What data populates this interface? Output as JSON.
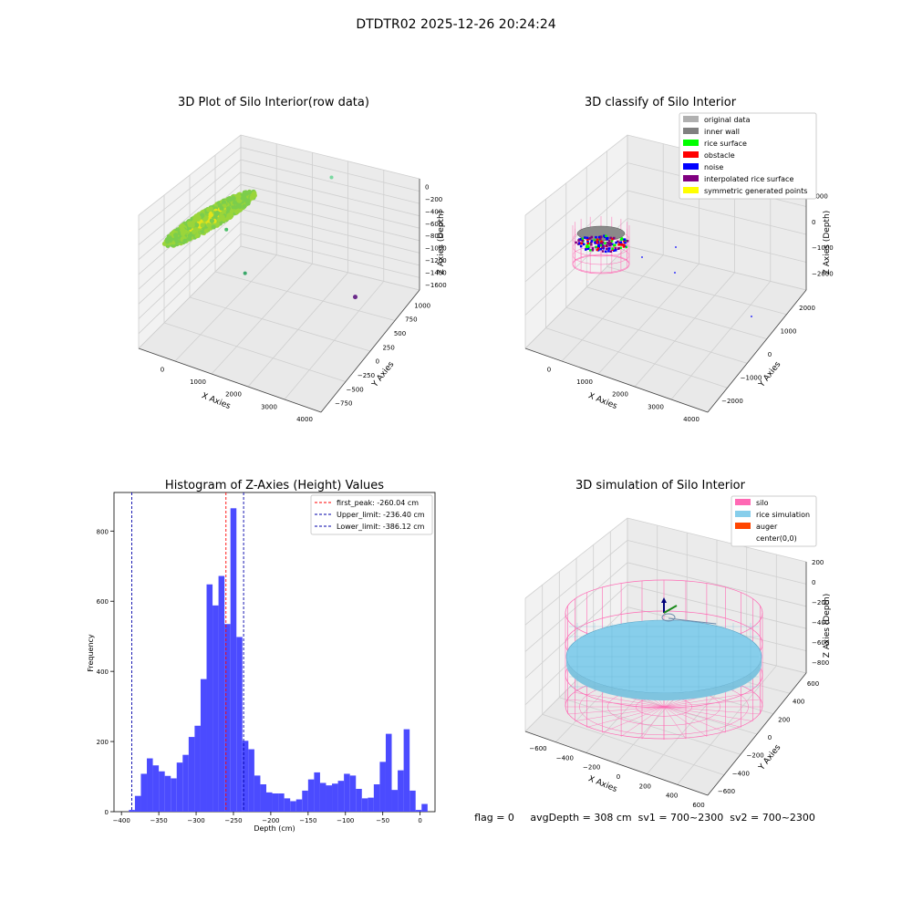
{
  "figure": {
    "suptitle": "DTDTR02 2025-12-26 20:24:24",
    "footer": "flag = 0     avgDepth = 308 cm  sv1 = 700~2300  sv2 = 700~2300"
  },
  "colors": {
    "pane": "#f2f2f2",
    "pane_side": "#e9e9e9",
    "grid": "#cfcfcf",
    "hist_bar": "#4b4bff",
    "first_peak": "#ff0000",
    "limits": "#0000aa",
    "silo": "#ff69b4",
    "rice": "#87ceeb",
    "auger": "#ff4500"
  },
  "chart_data": [
    {
      "type": "scatter",
      "title": "3D Plot of Silo Interior(row data)",
      "xlabel": "X Axies",
      "ylabel": "Y Axies",
      "zlabel": "Z Axies (Depth)",
      "x_ticks": [
        "0",
        "1000",
        "2000",
        "3000",
        "4000"
      ],
      "y_ticks": [
        "−750",
        "−500",
        "−250",
        "0",
        "250",
        "500",
        "750",
        "1000"
      ],
      "z_ticks": [
        "0",
        "−200",
        "−400",
        "−600",
        "−800",
        "−1000",
        "−1200",
        "−1400",
        "−1600"
      ],
      "outliers": [
        {
          "x": 3500,
          "y": 600,
          "z": -1600
        },
        {
          "x": 1600,
          "y": -200,
          "z": -900
        },
        {
          "x": 700,
          "y": 100,
          "z": -700
        },
        {
          "x": 2600,
          "y": 800,
          "z": -200
        }
      ]
    },
    {
      "type": "scatter",
      "title": "3D classify of Silo Interior",
      "xlabel": "X Axies",
      "ylabel": "Y Axies",
      "zlabel": "Z Axies (Depth)",
      "x_ticks": [
        "0",
        "1000",
        "2000",
        "3000",
        "4000"
      ],
      "y_ticks": [
        "−2000",
        "−1000",
        "0",
        "1000",
        "2000"
      ],
      "z_ticks": [
        "1000",
        "0",
        "−1000",
        "−2000"
      ],
      "legend": [
        {
          "label": "original data",
          "color": "#b0b0b0"
        },
        {
          "label": "inner wall",
          "color": "#808080"
        },
        {
          "label": "rice surface",
          "color": "#00ff00"
        },
        {
          "label": "obstacle",
          "color": "#ff0000"
        },
        {
          "label": "noise",
          "color": "#0000ff"
        },
        {
          "label": "interpolated rice surface",
          "color": "#800080"
        },
        {
          "label": "symmetric generated points",
          "color": "#ffff00"
        }
      ]
    },
    {
      "type": "bar",
      "title": "Histogram of Z-Axies (Height) Values",
      "xlabel": "Depth (cm)",
      "ylabel": "Frequency",
      "xlim": [
        -410,
        20
      ],
      "ylim": [
        0,
        910
      ],
      "x_ticks": [
        -400,
        -350,
        -300,
        -250,
        -200,
        -150,
        -100,
        -50,
        0
      ],
      "y_ticks": [
        0,
        200,
        400,
        600,
        800
      ],
      "bin_start": -390,
      "bin_width": 8,
      "values": [
        5,
        45,
        108,
        152,
        132,
        115,
        102,
        95,
        140,
        162,
        213,
        245,
        378,
        648,
        588,
        672,
        535,
        865,
        498,
        202,
        178,
        103,
        78,
        55,
        52,
        52,
        38,
        30,
        35,
        60,
        92,
        112,
        82,
        75,
        80,
        88,
        108,
        103,
        65,
        38,
        40,
        78,
        142,
        222,
        62,
        118,
        235,
        60,
        5,
        22
      ],
      "lines": [
        {
          "label": "first_peak: -260.04 cm",
          "x": -260.04,
          "color": "#ff0000"
        },
        {
          "label": "Upper_limit: -236.40 cm",
          "x": -236.4,
          "color": "#0000aa"
        },
        {
          "label": "Lower_limit: -386.12 cm",
          "x": -386.12,
          "color": "#0000aa"
        }
      ]
    },
    {
      "type": "scatter",
      "title": "3D simulation of Silo Interior",
      "xlabel": "X Axies",
      "ylabel": "Y Axies",
      "zlabel": "Z Axies (Depth)",
      "x_ticks": [
        "−600",
        "−400",
        "−200",
        "0",
        "200",
        "400",
        "600"
      ],
      "y_ticks": [
        "−600",
        "−400",
        "−200",
        "0",
        "200",
        "400",
        "600"
      ],
      "z_ticks": [
        "200",
        "0",
        "−200",
        "−400",
        "−600",
        "−800"
      ],
      "legend": [
        {
          "label": "silo",
          "color": "#ff69b4"
        },
        {
          "label": "rice simulation",
          "color": "#87ceeb"
        },
        {
          "label": "auger",
          "color": "#ff4500"
        },
        {
          "label": "center(0,0)",
          "color": ""
        }
      ]
    }
  ]
}
